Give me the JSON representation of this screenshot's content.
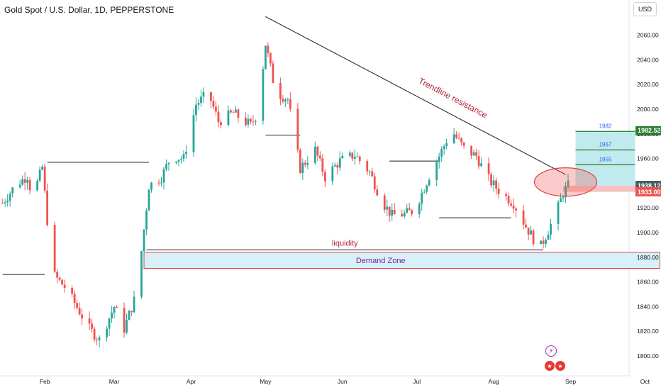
{
  "header": {
    "title": "Gold Spot / U.S. Dollar, 1D, PEPPERSTONE",
    "currency": "USD"
  },
  "price_tags": {
    "target_1982": "1982.52",
    "last_price": "1938.12",
    "level_1933": "1933.00"
  },
  "colors": {
    "up": "#26a69a",
    "down": "#ef5350",
    "annotation_text": "#b2243b",
    "target_fill": "#b2e5ea",
    "target_line": "#2e8b3a",
    "target_label": "#2962ff",
    "demand_zone_fill": "#d6f1f8",
    "demand_zone_border": "#e0424f",
    "demand_zone_text": "#7b1fa2",
    "grid_text": "#131722",
    "tag_target": "#2e7d32",
    "tag_last": "#4b5f61",
    "tag_level": "#ef5350"
  },
  "icons": {
    "event_icon": "lightning-icon",
    "flags_icon": "us-flag-icon"
  },
  "chart_data": {
    "type": "candlestick",
    "title": "Gold Spot / U.S. Dollar, 1D, PEPPERSTONE",
    "xlabel": "",
    "ylabel": "",
    "ylim": [
      1790,
      2075
    ],
    "y_ticks": [
      1800,
      1820,
      1840,
      1860,
      1880,
      1900,
      1920,
      1940,
      1960,
      1980,
      2000,
      2020,
      2040,
      2060
    ],
    "y_tick_labels": [
      "1800.00",
      "1820.00",
      "1840.00",
      "1860.00",
      "1880.00",
      "1900.00",
      "1920.00",
      "1940.00",
      "1960.00",
      "1980.00",
      "2000.00",
      "2020.00",
      "2040.00",
      "2060.00"
    ],
    "x_tick_labels": [
      "Feb",
      "Mar",
      "Apr",
      "May",
      "Jun",
      "Jul",
      "Aug",
      "Sep",
      "Oct"
    ],
    "x_tick_days": [
      17,
      45,
      76,
      106,
      137,
      167,
      198,
      229,
      259
    ],
    "grid": false,
    "price_path": [
      [
        0,
        1924
      ],
      [
        5,
        1938
      ],
      [
        10,
        1946
      ],
      [
        12,
        1928
      ],
      [
        16,
        1953
      ],
      [
        20,
        1867
      ],
      [
        25,
        1856
      ],
      [
        29,
        1843
      ],
      [
        35,
        1822
      ],
      [
        39,
        1813
      ],
      [
        45,
        1840
      ],
      [
        49,
        1822
      ],
      [
        53,
        1845
      ],
      [
        56,
        1885
      ],
      [
        59,
        1938
      ],
      [
        64,
        1945
      ],
      [
        68,
        1962
      ],
      [
        73,
        1960
      ],
      [
        78,
        2004
      ],
      [
        83,
        2013
      ],
      [
        87,
        1990
      ],
      [
        93,
        1997
      ],
      [
        100,
        1987
      ],
      [
        103,
        1998
      ],
      [
        106,
        2053
      ],
      [
        110,
        2014
      ],
      [
        115,
        2008
      ],
      [
        120,
        1952
      ],
      [
        126,
        1967
      ],
      [
        130,
        1945
      ],
      [
        136,
        1958
      ],
      [
        142,
        1963
      ],
      [
        148,
        1949
      ],
      [
        153,
        1925
      ],
      [
        157,
        1914
      ],
      [
        162,
        1915
      ],
      [
        166,
        1918
      ],
      [
        172,
        1946
      ],
      [
        176,
        1962
      ],
      [
        181,
        1983
      ],
      [
        186,
        1968
      ],
      [
        191,
        1962
      ],
      [
        196,
        1943
      ],
      [
        201,
        1932
      ],
      [
        206,
        1924
      ],
      [
        211,
        1905
      ],
      [
        214,
        1895
      ],
      [
        217,
        1889
      ],
      [
        220,
        1902
      ],
      [
        223,
        1915
      ],
      [
        226,
        1932
      ],
      [
        228,
        1938
      ],
      [
        229,
        1939
      ]
    ],
    "annotations": [
      {
        "kind": "trendline",
        "label": "Trendline  resistance",
        "from": [
          106,
          2075
        ],
        "to": [
          227,
          1947
        ]
      },
      {
        "kind": "hline",
        "from": [
          0,
          1866
        ],
        "to": [
          17,
          1866
        ]
      },
      {
        "kind": "hline",
        "from": [
          18,
          1957
        ],
        "to": [
          59,
          1957
        ]
      },
      {
        "kind": "hline",
        "from": [
          106,
          1979
        ],
        "to": [
          120,
          1979
        ]
      },
      {
        "kind": "hline",
        "from": [
          156,
          1958
        ],
        "to": [
          176,
          1958
        ]
      },
      {
        "kind": "hline",
        "from": [
          176,
          1912
        ],
        "to": [
          205,
          1912
        ]
      },
      {
        "kind": "hline",
        "label": "liquidity",
        "from": [
          58,
          1886
        ],
        "to": [
          218,
          1886
        ]
      },
      {
        "kind": "zone",
        "label": "Demand  Zone",
        "from": [
          57,
          1884
        ],
        "to": [
          265,
          1871
        ]
      },
      {
        "kind": "circle",
        "center": [
          227,
          1941
        ]
      },
      {
        "kind": "target_box",
        "x_range": [
          231,
          255
        ],
        "bottom": 1938,
        "levels": [
          1955,
          1967,
          1982
        ],
        "level_labels": [
          "1955",
          "1967",
          "1982"
        ]
      },
      {
        "kind": "stop_box",
        "x_range": [
          226,
          265
        ],
        "range": [
          1933,
          1938
        ]
      }
    ]
  }
}
